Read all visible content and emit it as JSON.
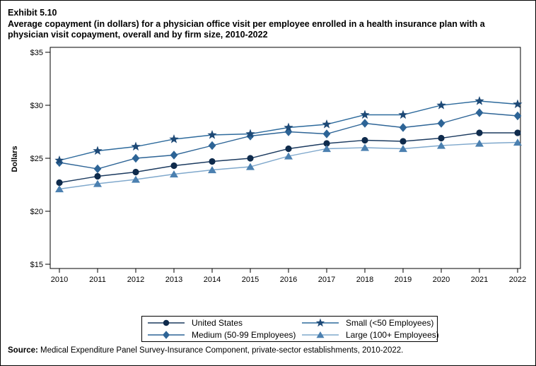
{
  "header": {
    "exhibit_label": "Exhibit 5.10",
    "title_line1": "Average copayment (in dollars) for a physician office visit per employee enrolled in a health insurance plan with a",
    "title_line2": "physician visit copayment, overall and by firm size, 2010-2022"
  },
  "chart_data": {
    "type": "line",
    "x": [
      2010,
      2011,
      2012,
      2013,
      2014,
      2015,
      2016,
      2017,
      2018,
      2019,
      2020,
      2021,
      2022
    ],
    "ylabel": "Dollars",
    "ylim": [
      15,
      35
    ],
    "ytick_step": 5,
    "ytick_labels": [
      "$15",
      "$20",
      "$25",
      "$30",
      "$35"
    ],
    "grid": "off",
    "legend_position": "bottom-box",
    "series": [
      {
        "name": "United States",
        "marker": "circle",
        "line_color": "#1b3a5f",
        "marker_color": "#0f2b4c",
        "values": [
          22.7,
          23.3,
          23.7,
          24.3,
          24.7,
          25.0,
          25.9,
          26.4,
          26.7,
          26.6,
          26.9,
          27.4,
          27.4
        ]
      },
      {
        "name": "Medium (50-99 Employees)",
        "marker": "diamond",
        "line_color": "#2d6496",
        "marker_color": "#2d6496",
        "values": [
          24.6,
          24.0,
          25.0,
          25.3,
          26.2,
          27.1,
          27.5,
          27.3,
          28.3,
          27.9,
          28.3,
          29.3,
          29.0
        ]
      },
      {
        "name": "Small (<50 Employees)",
        "marker": "star",
        "line_color": "#2d6a9c",
        "marker_color": "#1d4976",
        "values": [
          24.8,
          25.7,
          26.1,
          26.8,
          27.2,
          27.3,
          27.9,
          28.2,
          29.1,
          29.1,
          30.0,
          30.4,
          30.1
        ]
      },
      {
        "name": "Large (100+ Employees)",
        "marker": "triangle",
        "line_color": "#7fa8cc",
        "marker_color": "#4b80b0",
        "values": [
          22.1,
          22.6,
          23.0,
          23.5,
          23.9,
          24.2,
          25.2,
          25.9,
          26.0,
          25.9,
          26.2,
          26.4,
          26.5
        ]
      }
    ],
    "legend_order": [
      0,
      2,
      1,
      3
    ]
  },
  "footer": {
    "source_label": "Source:",
    "source_text": " Medical Expenditure Panel Survey-Insurance Component, private-sector establishments, 2010-2022."
  }
}
